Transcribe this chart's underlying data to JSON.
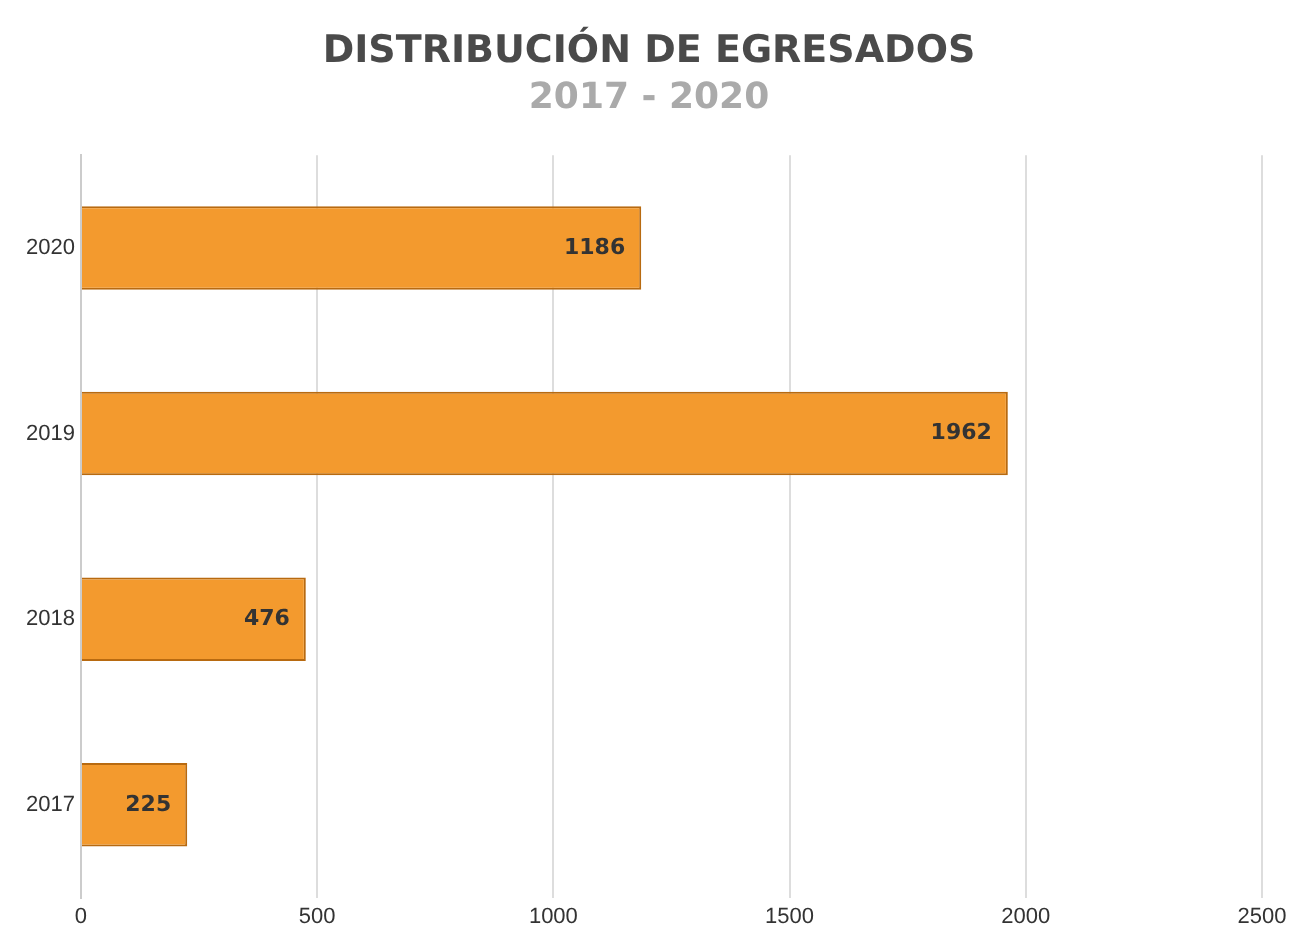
{
  "chart_data": {
    "type": "bar",
    "orientation": "horizontal",
    "title": "DISTRIBUCIÓN DE EGRESADOS",
    "subtitle": "2017 - 2020",
    "categories": [
      "2020",
      "2019",
      "2018",
      "2017"
    ],
    "values": [
      1186,
      1962,
      476,
      225
    ],
    "color": "#f39a2e",
    "xlim": [
      0,
      2500
    ],
    "xticks": [
      0,
      500,
      1000,
      1500,
      2000,
      2500
    ],
    "grid": "x",
    "legend": false,
    "data_labels": true
  }
}
